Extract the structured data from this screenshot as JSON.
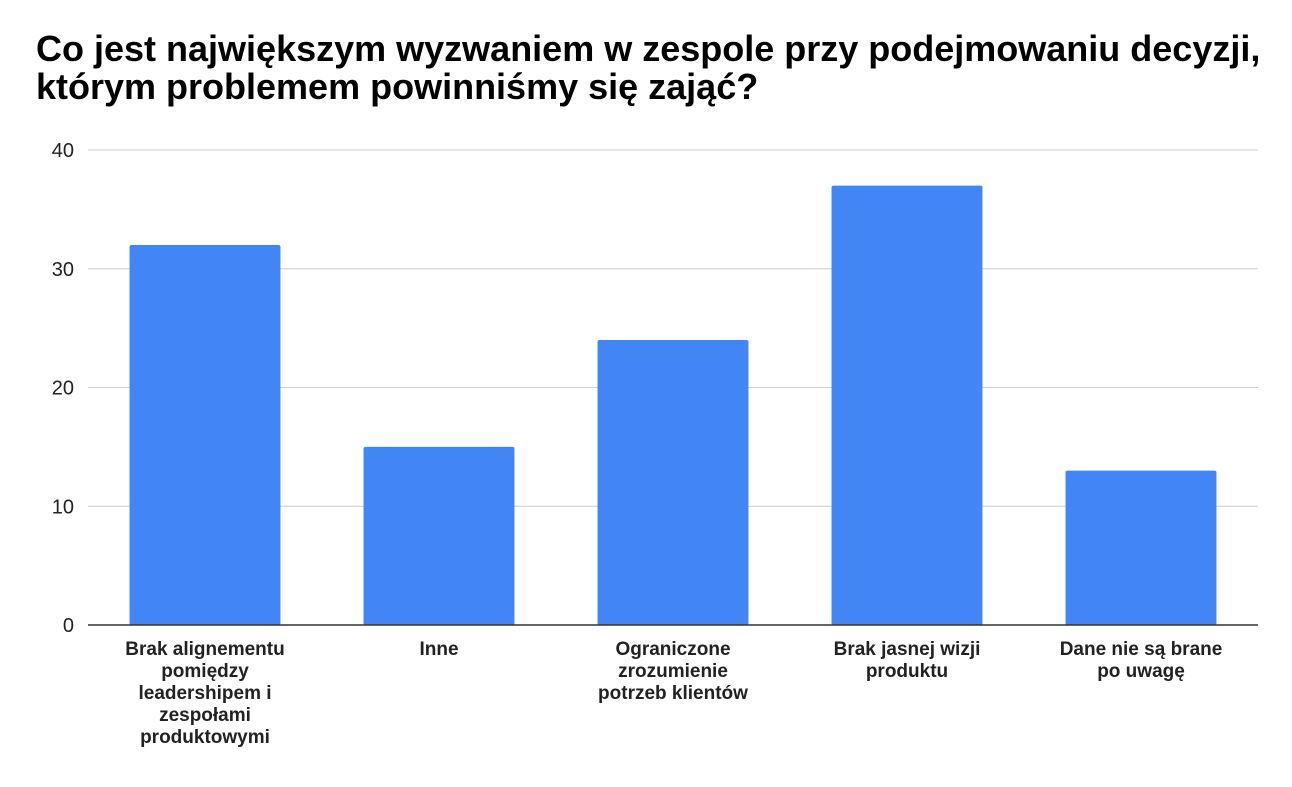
{
  "chart_data": {
    "type": "bar",
    "title": "Co jest największym wyzwaniem w zespole przy podejmowaniu decyzji, którym problemem powinniśmy się zająć?",
    "categories": [
      "Brak alignementu pomiędzy leadershipem i zespołami produktowymi",
      "Inne",
      "Ograniczone zrozumienie potrzeb klientów",
      "Brak jasnej wizji produktu",
      "Dane nie są brane po uwagę"
    ],
    "category_lines": [
      [
        "Brak alignementu",
        "pomiędzy",
        "leadershipem i",
        "zespołami",
        "produktowymi"
      ],
      [
        "Inne"
      ],
      [
        "Ograniczone",
        "zrozumienie",
        "potrzeb klientów"
      ],
      [
        "Brak jasnej wizji",
        "produktu"
      ],
      [
        "Dane nie są brane",
        "po uwagę"
      ]
    ],
    "values": [
      32,
      15,
      24,
      37,
      13
    ],
    "ylim": [
      0,
      40
    ],
    "yticks": [
      0,
      10,
      20,
      30,
      40
    ],
    "xlabel": "",
    "ylabel": "",
    "grid": true,
    "legend": "none",
    "bar_color": "#4285f4"
  }
}
